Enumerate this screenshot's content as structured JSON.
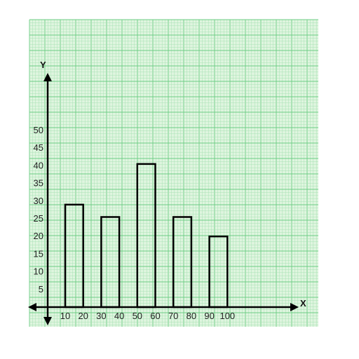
{
  "chart_data": {
    "type": "bar",
    "bars": [
      {
        "x0": 10,
        "x1": 20,
        "value": 29
      },
      {
        "x0": 30,
        "x1": 40,
        "value": 25.5
      },
      {
        "x0": 50,
        "x1": 60,
        "value": 40.5
      },
      {
        "x0": 70,
        "x1": 80,
        "value": 25.5
      },
      {
        "x0": 90,
        "x1": 100,
        "value": 20
      }
    ],
    "x_ticks": [
      "10",
      "20",
      "30",
      "40",
      "50",
      "60",
      "70",
      "80",
      "90",
      "100"
    ],
    "y_ticks": [
      "5",
      "10",
      "15",
      "20",
      "25",
      "30",
      "35",
      "40",
      "45",
      "50"
    ],
    "xlabel": "X",
    "ylabel": "Y",
    "ylim": [
      0,
      50
    ],
    "grid": true,
    "colors": {
      "paper": "#dff5df",
      "grid_minor": "#a8e2b4",
      "grid_major": "#6ccd84",
      "bar_fill": "#ffffff",
      "bar_stroke": "#000000",
      "axis": "#000000"
    }
  }
}
